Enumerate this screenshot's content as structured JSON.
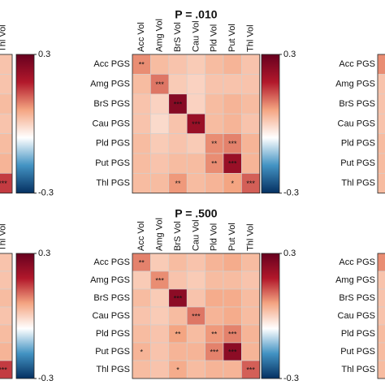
{
  "chart_data": [
    {
      "type": "heatmap",
      "x_categories": [
        "Thl Vol"
      ],
      "values": [
        [
          0.02
        ],
        [
          0.02
        ],
        [
          0.03
        ],
        [
          0.02
        ],
        [
          0.03
        ],
        [
          0.04
        ],
        [
          0.15
        ]
      ],
      "stars": [
        [
          null
        ],
        [
          null
        ],
        [
          null
        ],
        [
          null
        ],
        [
          null
        ],
        [
          null
        ],
        [
          "***"
        ]
      ],
      "clim": [
        -0.3,
        0.3
      ],
      "cticks": [
        -0.3,
        0.3
      ],
      "colors": [
        "#053061",
        "#4393c3",
        "#ffffff",
        "#f4a582",
        "#b2182b",
        "#67001f"
      ]
    },
    {
      "type": "heatmap",
      "title": "P = .010",
      "x_categories": [
        "Acc Vol",
        "Amg Vol",
        "BrS Vol",
        "Cau Vol",
        "Pld Vol",
        "Put Vol",
        "Thl Vol"
      ],
      "y_categories": [
        "Acc PGS",
        "Amg PGS",
        "BrS PGS",
        "Cau PGS",
        "Pld PGS",
        "Put PGS",
        "Thl PGS"
      ],
      "values": [
        [
          0.08,
          0.03,
          0.02,
          0.01,
          0.03,
          0.04,
          0.02
        ],
        [
          0.03,
          0.1,
          0.01,
          0.0,
          0.02,
          0.02,
          0.02
        ],
        [
          0.02,
          0.0,
          0.25,
          0.0,
          0.03,
          0.04,
          0.03
        ],
        [
          0.02,
          -0.01,
          0.02,
          0.22,
          0.03,
          0.04,
          0.02
        ],
        [
          0.03,
          0.01,
          0.02,
          0.01,
          0.08,
          0.09,
          0.04
        ],
        [
          0.03,
          0.02,
          0.03,
          0.03,
          0.08,
          0.22,
          0.04
        ],
        [
          0.03,
          0.03,
          0.07,
          0.03,
          0.04,
          0.06,
          0.12
        ]
      ],
      "stars": [
        [
          "**",
          null,
          null,
          null,
          null,
          null,
          null
        ],
        [
          null,
          "***",
          null,
          null,
          null,
          null,
          null
        ],
        [
          null,
          null,
          "***",
          null,
          null,
          null,
          null
        ],
        [
          null,
          null,
          null,
          "***",
          null,
          null,
          null
        ],
        [
          null,
          null,
          null,
          null,
          "**",
          "***",
          null
        ],
        [
          null,
          null,
          null,
          null,
          "**",
          "***",
          null
        ],
        [
          null,
          null,
          "**",
          null,
          null,
          "*",
          "***"
        ]
      ],
      "clim": [
        -0.3,
        0.3
      ],
      "cticks": [
        -0.3,
        0.3
      ],
      "colors": [
        "#053061",
        "#4393c3",
        "#ffffff",
        "#f4a582",
        "#b2182b",
        "#67001f"
      ]
    },
    {
      "type": "heatmap",
      "y_categories": [
        "Acc PGS",
        "Amg PGS",
        "BrS PGS",
        "Cau PGS",
        "Pld PGS",
        "Put PGS",
        "Thl PGS"
      ],
      "values": [
        [
          0.08
        ],
        [
          0.02
        ],
        [
          0.02
        ],
        [
          0.02
        ],
        [
          0.03
        ],
        [
          0.03
        ],
        [
          0.03
        ]
      ],
      "clim": [
        -0.3,
        0.3
      ],
      "colors": [
        "#053061",
        "#4393c3",
        "#ffffff",
        "#f4a582",
        "#b2182b",
        "#67001f"
      ]
    },
    {
      "type": "heatmap",
      "x_categories": [
        "Thl Vol"
      ],
      "values": [
        [
          0.02
        ],
        [
          0.02
        ],
        [
          0.03
        ],
        [
          0.02
        ],
        [
          0.03
        ],
        [
          0.04
        ],
        [
          0.15
        ]
      ],
      "stars": [
        [
          null
        ],
        [
          null
        ],
        [
          null
        ],
        [
          null
        ],
        [
          null
        ],
        [
          null
        ],
        [
          "***"
        ]
      ],
      "clim": [
        -0.3,
        0.3
      ],
      "cticks": [
        -0.3,
        0.3
      ],
      "colors": [
        "#053061",
        "#4393c3",
        "#ffffff",
        "#f4a582",
        "#b2182b",
        "#67001f"
      ]
    },
    {
      "type": "heatmap",
      "title": "P = .500",
      "x_categories": [
        "Acc Vol",
        "Amg Vol",
        "BrS Vol",
        "Cau Vol",
        "Pld Vol",
        "Put Vol",
        "Thl Vol"
      ],
      "y_categories": [
        "Acc PGS",
        "Amg PGS",
        "BrS PGS",
        "Cau PGS",
        "Pld PGS",
        "Put PGS",
        "Thl PGS"
      ],
      "values": [
        [
          0.09,
          0.01,
          0.03,
          0.02,
          0.04,
          0.05,
          0.03
        ],
        [
          0.01,
          0.08,
          0.02,
          0.01,
          0.03,
          0.03,
          0.02
        ],
        [
          0.03,
          0.01,
          0.24,
          0.02,
          0.05,
          0.05,
          0.03
        ],
        [
          0.02,
          0.01,
          0.03,
          0.1,
          0.04,
          0.05,
          0.03
        ],
        [
          0.03,
          0.02,
          0.06,
          0.03,
          0.07,
          0.09,
          0.04
        ],
        [
          0.04,
          0.02,
          0.04,
          0.04,
          0.09,
          0.24,
          0.04
        ],
        [
          0.03,
          0.02,
          0.05,
          0.03,
          0.04,
          0.04,
          0.12
        ]
      ],
      "stars": [
        [
          "**",
          null,
          null,
          null,
          null,
          null,
          null
        ],
        [
          null,
          "***",
          null,
          null,
          null,
          null,
          null
        ],
        [
          null,
          null,
          "***",
          null,
          null,
          null,
          null
        ],
        [
          null,
          null,
          null,
          "***",
          null,
          null,
          null
        ],
        [
          null,
          null,
          "**",
          null,
          "**",
          "***",
          null
        ],
        [
          "*",
          null,
          null,
          null,
          "***",
          "***",
          null
        ],
        [
          null,
          null,
          "*",
          null,
          null,
          null,
          "***"
        ]
      ],
      "clim": [
        -0.3,
        0.3
      ],
      "cticks": [
        -0.3,
        0.3
      ],
      "colors": [
        "#053061",
        "#4393c3",
        "#ffffff",
        "#f4a582",
        "#b2182b",
        "#67001f"
      ]
    },
    {
      "type": "heatmap",
      "y_categories": [
        "Acc PGS",
        "Amg PGS",
        "BrS PGS",
        "Cau PGS",
        "Pld PGS",
        "Put PGS",
        "Thl PGS"
      ],
      "values": [
        [
          0.08
        ],
        [
          0.02
        ],
        [
          0.02
        ],
        [
          0.02
        ],
        [
          0.03
        ],
        [
          0.03
        ],
        [
          0.03
        ]
      ],
      "clim": [
        -0.3,
        0.3
      ],
      "colors": [
        "#053061",
        "#4393c3",
        "#ffffff",
        "#f4a582",
        "#b2182b",
        "#67001f"
      ]
    }
  ]
}
